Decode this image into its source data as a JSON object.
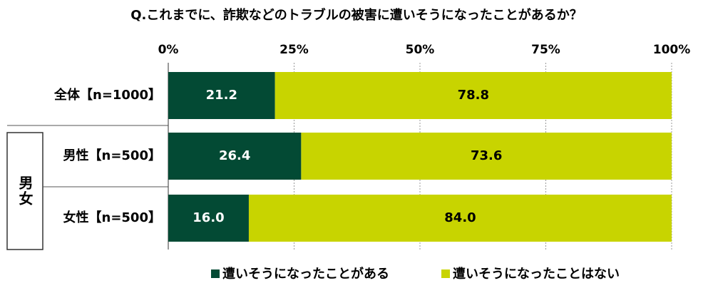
{
  "chart_data": {
    "type": "stacked-bar-horizontal",
    "title": "Q.これまでに、詐欺などのトラブルの被害に遭いそうになったことがあるか？",
    "categories": [
      "全体【n=1000】",
      "男性【n=500】",
      "女性【n=500】"
    ],
    "group_label": "男女",
    "series": [
      {
        "name": "遭いそうになったことがある",
        "color": "#034a34",
        "values": [
          21.2,
          26.4,
          16.0
        ],
        "value_labels": [
          "21.2",
          "26.4",
          "16.0"
        ],
        "label_color": "#ffffff"
      },
      {
        "name": "遭いそうになったことはない",
        "color": "#c8d400",
        "values": [
          78.8,
          73.6,
          84.0
        ],
        "value_labels": [
          "78.8",
          "73.6",
          "84.0"
        ],
        "label_color": "#000000"
      }
    ],
    "xlim": [
      0,
      100
    ],
    "xticks": [
      {
        "value": 0,
        "label": "0%"
      },
      {
        "value": 25,
        "label": "25%"
      },
      {
        "value": 50,
        "label": "50%"
      },
      {
        "value": 75,
        "label": "75%"
      },
      {
        "value": 100,
        "label": "100%"
      }
    ],
    "grid": true,
    "legend": "bottom"
  }
}
